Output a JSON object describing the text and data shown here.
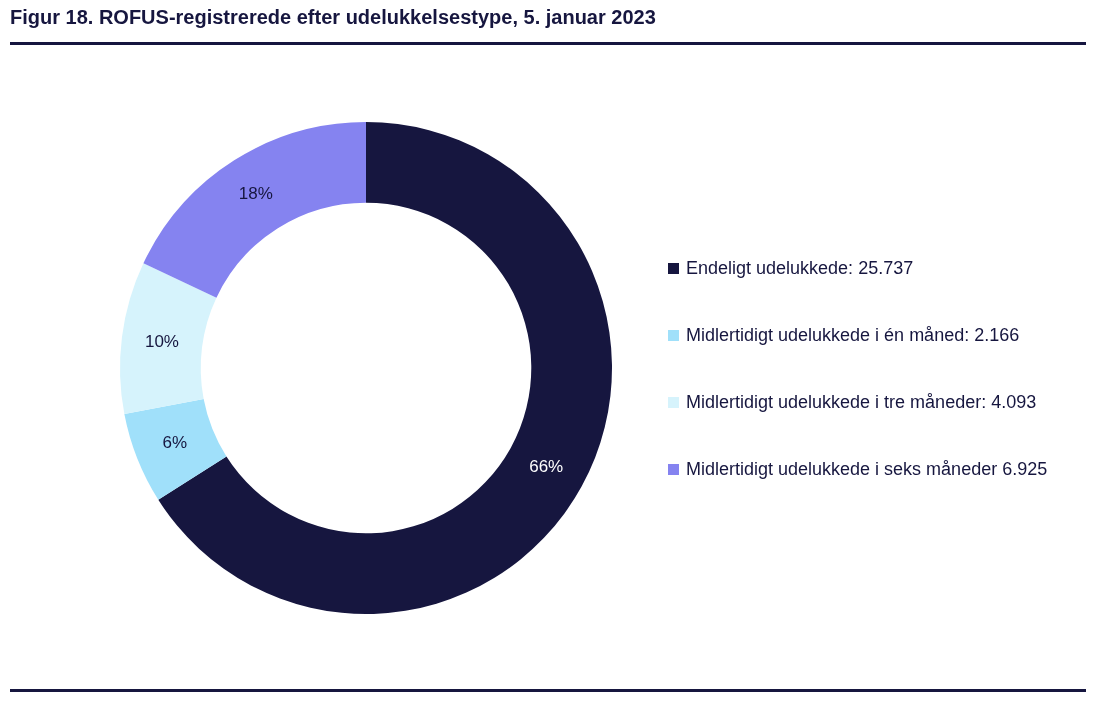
{
  "chart_data": {
    "type": "donut",
    "title": "Figur 18. ROFUS-registrerede efter udelukkelsestype, 5. januar 2023",
    "categories": [
      "Endeligt udelukkede: 25.737",
      "Midlertidigt udelukkede i én måned: 2.166",
      "Midlertidigt udelukkede i tre måneder: 4.093",
      "Midlertidigt udelukkede i seks måneder 6.925"
    ],
    "values": [
      66,
      6,
      10,
      18
    ],
    "value_labels": [
      "66%",
      "6%",
      "10%",
      "18%"
    ],
    "colors": [
      "#16163f",
      "#a0e0fa",
      "#d6f3fc",
      "#8583f0"
    ],
    "legend": "right"
  }
}
